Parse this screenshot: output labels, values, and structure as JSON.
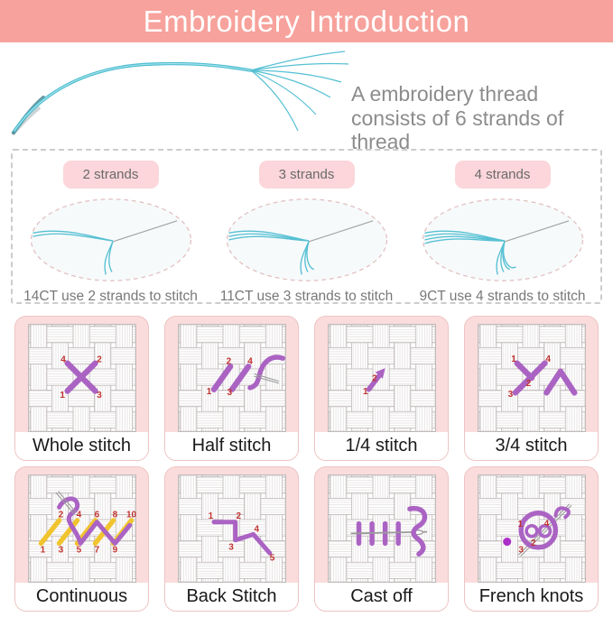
{
  "header": {
    "title": "Embroidery Introduction"
  },
  "intro": {
    "line1": "A embroidery thread",
    "line2": "consists of 6 strands of thread",
    "strands_total": 6
  },
  "strand_guide": {
    "columns": [
      {
        "badge": "2 strands",
        "strands": 2,
        "caption": "14CT use 2 strands to stitch"
      },
      {
        "badge": "3 strands",
        "strands": 3,
        "caption": "11CT use 3 strands to stitch"
      },
      {
        "badge": "4 strands",
        "strands": 4,
        "caption": "9CT use 4 strands to stitch"
      }
    ]
  },
  "stitches": {
    "cards": [
      {
        "label": "Whole stitch",
        "numbers": [
          "1",
          "2",
          "3",
          "4"
        ]
      },
      {
        "label": "Half stitch",
        "numbers": [
          "1",
          "2",
          "3",
          "4"
        ]
      },
      {
        "label": "1/4 stitch",
        "numbers": [
          "1",
          "2"
        ]
      },
      {
        "label": "3/4 stitch",
        "numbers": [
          "1",
          "2",
          "3",
          "4"
        ]
      },
      {
        "label": "Continuous",
        "numbers": [
          "1",
          "2",
          "3",
          "4",
          "5",
          "6",
          "7",
          "8",
          "9",
          "10"
        ]
      },
      {
        "label": "Back Stitch",
        "numbers": [
          "1",
          "2",
          "3",
          "4",
          "5"
        ]
      },
      {
        "label": "Cast off",
        "numbers": []
      },
      {
        "label": "French knots",
        "numbers": [
          "1",
          "2",
          "3",
          "4"
        ]
      }
    ]
  },
  "colors": {
    "header_bg": "#f7a29c",
    "card_bg": "#fbdcdc",
    "badge_bg": "#fcd6da",
    "stitch_purple": "#aa63c3",
    "stitch_yellow": "#f1c42f",
    "number_red": "#c03430",
    "thread_teal": "#4ebdd0",
    "text_gray": "#8c8c8c"
  }
}
